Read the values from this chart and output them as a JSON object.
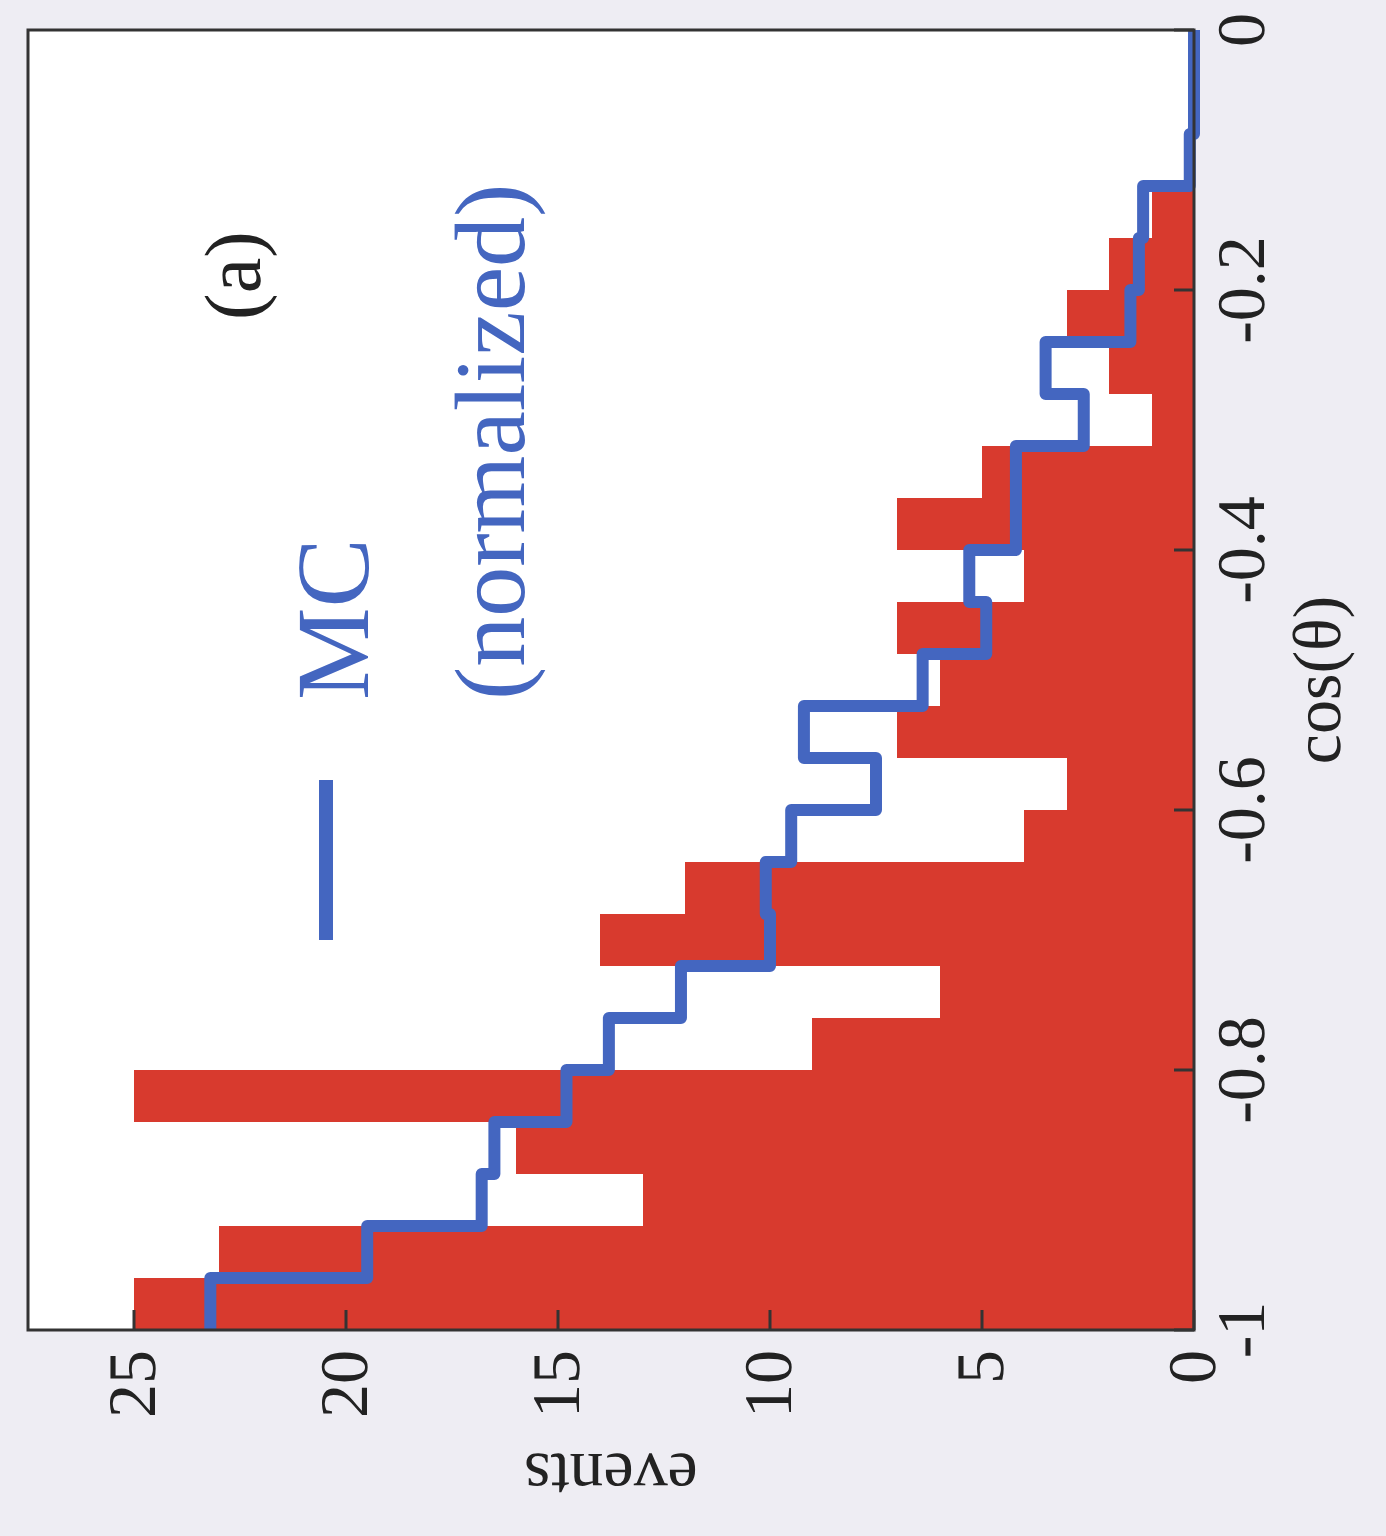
{
  "chart_data": {
    "type": "histogram",
    "orientation": "horizontal",
    "xlabel": "events",
    "ylabel": "cos(θ)",
    "annotations": [
      "(a)"
    ],
    "bins": [
      -1,
      -0.96,
      -0.92,
      -0.88,
      -0.84,
      -0.8,
      -0.76,
      -0.72,
      -0.68,
      -0.64,
      -0.6,
      -0.56,
      -0.52,
      -0.48,
      -0.44,
      -0.4,
      -0.36,
      -0.32,
      -0.28,
      -0.24,
      -0.2,
      -0.16,
      -0.12,
      -0.08,
      -0.04,
      0
    ],
    "series": [
      {
        "color": "#d83a2e",
        "values": [
          25,
          23,
          13,
          16,
          25,
          9,
          6,
          14,
          12,
          4,
          3,
          7,
          6,
          7,
          4,
          7,
          5,
          1,
          2,
          3,
          2,
          1,
          0,
          0,
          0
        ]
      },
      {
        "type": "step",
        "name": "MC (normalized)",
        "color": "#4466c0",
        "x": [
          -1,
          -0.96,
          -0.92,
          -0.88,
          -0.84,
          -0.8,
          -0.76,
          -0.72,
          -0.68,
          -0.64,
          -0.6,
          -0.56,
          -0.52,
          -0.48,
          -0.44,
          -0.4,
          -0.36,
          -0.32,
          -0.28,
          -0.24,
          -0.2,
          -0.16,
          -0.12,
          -0.08,
          -0.04,
          0
        ],
        "values": [
          23.2,
          19.5,
          16.8,
          16.5,
          14.8,
          13.8,
          12.1,
          10,
          10.1,
          9.5,
          7.5,
          9.2,
          6.4,
          4.9,
          5.3,
          4.2,
          4.2,
          2.6,
          3.5,
          1.5,
          1.3,
          1.2,
          0.1,
          0,
          0,
          0
        ]
      }
    ],
    "xlim": [
      27.5,
      0
    ],
    "ylim": [
      -1,
      0
    ],
    "xticks": [
      25,
      20,
      15,
      10,
      5,
      0
    ],
    "yticks": [
      -1,
      -0.8,
      -0.6,
      -0.4,
      -0.2,
      0
    ],
    "legend": "left"
  }
}
